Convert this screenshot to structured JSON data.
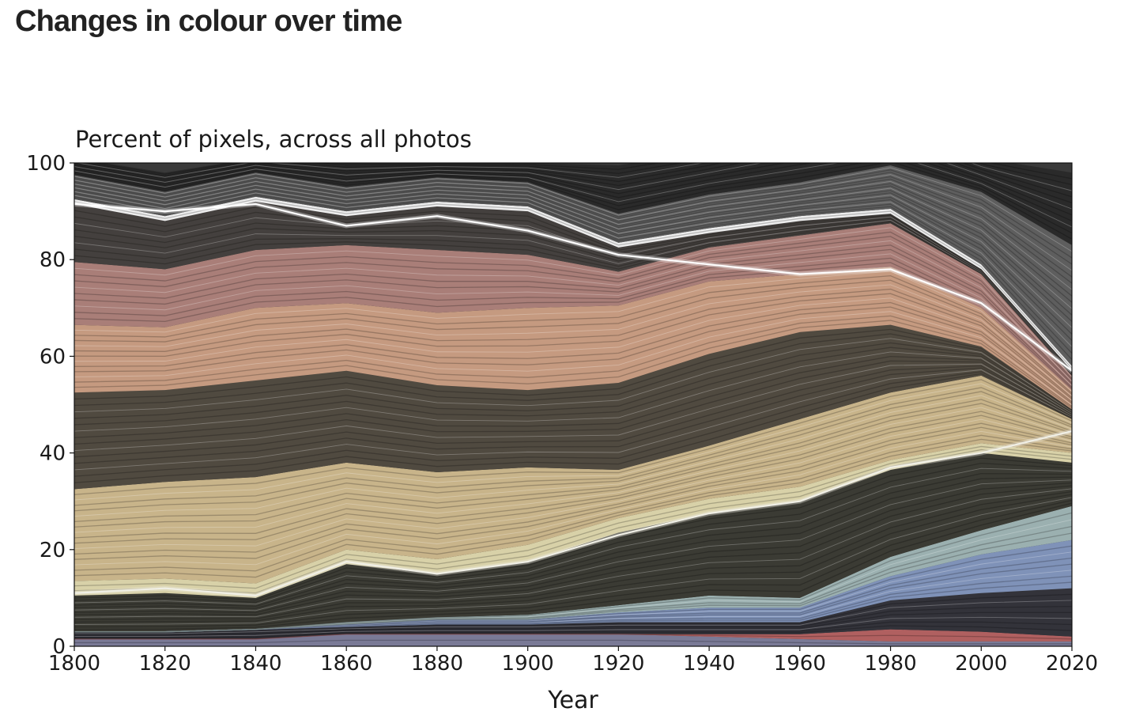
{
  "page": {
    "title": "Changes in colour over time"
  },
  "chart_data": {
    "type": "area",
    "subtitle": "Percent of pixels, across all photos",
    "xlabel": "Year",
    "ylabel": "",
    "xlim": [
      1800,
      2020
    ],
    "ylim": [
      0,
      100
    ],
    "x": [
      1800,
      1820,
      1840,
      1860,
      1880,
      1900,
      1920,
      1940,
      1960,
      1980,
      2000,
      2020
    ],
    "x_ticks": [
      1800,
      1820,
      1840,
      1860,
      1880,
      1900,
      1920,
      1940,
      1960,
      1980,
      2000,
      2020
    ],
    "y_ticks": [
      0,
      20,
      40,
      60,
      80,
      100
    ],
    "grid": false,
    "legend": "none",
    "stacked_series": [
      {
        "color": "#7a7a96",
        "values": [
          1.5,
          1.5,
          1.5,
          2.5,
          2.5,
          2.5,
          2.5,
          2,
          1.5,
          1,
          1,
          1
        ]
      },
      {
        "color": "#b06060",
        "values": [
          0,
          0,
          0,
          0,
          0,
          0,
          0,
          0.5,
          1,
          2.5,
          2,
          1
        ]
      },
      {
        "color": "#33333a",
        "values": [
          1.5,
          1.5,
          2,
          1.5,
          2,
          2,
          2.5,
          2.5,
          2.5,
          6,
          8,
          10
        ]
      },
      {
        "color": "#7f92b8",
        "values": [
          0,
          0,
          0,
          0.5,
          1,
          1,
          2,
          3,
          3,
          5,
          8,
          10
        ]
      },
      {
        "color": "#9bb0b0",
        "values": [
          0,
          0,
          0,
          0.5,
          0.5,
          1,
          1.5,
          2.5,
          2,
          4,
          5,
          7
        ]
      },
      {
        "color": "#3b3b34",
        "values": [
          7.5,
          8,
          6.5,
          12,
          9,
          11,
          15,
          17,
          20,
          18,
          16,
          9
        ]
      },
      {
        "color": "#d8d1a8",
        "values": [
          3,
          3,
          3,
          3,
          3,
          3.5,
          3,
          3,
          3,
          2,
          2,
          2
        ]
      },
      {
        "color": "#c8b48a",
        "values": [
          19,
          20,
          22,
          18,
          18,
          16,
          10,
          11,
          14,
          14,
          14,
          7
        ]
      },
      {
        "color": "#504a40",
        "values": [
          20,
          19,
          20,
          19,
          18,
          16,
          18,
          19,
          18,
          14,
          6,
          2
        ]
      },
      {
        "color": "#c59a80",
        "values": [
          14,
          13,
          15,
          14,
          15,
          17,
          16,
          15,
          12,
          12,
          8,
          4
        ]
      },
      {
        "color": "#a97e78",
        "values": [
          13,
          12,
          12,
          12,
          13,
          11,
          7,
          7,
          8,
          9,
          7,
          3
        ]
      },
      {
        "color": "#44403e",
        "values": [
          12,
          10,
          10,
          6,
          9,
          9,
          5,
          3,
          3,
          2,
          1,
          1
        ]
      },
      {
        "color": "#ededed",
        "values": [
          1,
          1,
          1,
          1,
          1,
          1,
          1,
          1,
          1,
          1,
          1,
          1
        ]
      },
      {
        "color": "#5e5e5e",
        "values": [
          5,
          5,
          5,
          5,
          5,
          5,
          6,
          7,
          7,
          9,
          15,
          25
        ]
      },
      {
        "color": "#2a2a2a",
        "values": [
          3.5,
          4,
          3,
          5,
          3,
          4,
          10,
          9,
          11,
          9,
          7,
          15
        ]
      }
    ],
    "highlight_lines": [
      {
        "color": "#ffffff",
        "values": [
          91.5,
          90,
          91.5,
          87,
          89,
          86,
          81,
          79,
          77,
          78,
          71,
          57
        ]
      },
      {
        "color": "#f0efe6",
        "values": [
          11,
          12,
          10.5,
          17.5,
          15,
          17.5,
          23,
          27.5,
          30,
          37,
          40,
          44.5
        ]
      }
    ]
  }
}
